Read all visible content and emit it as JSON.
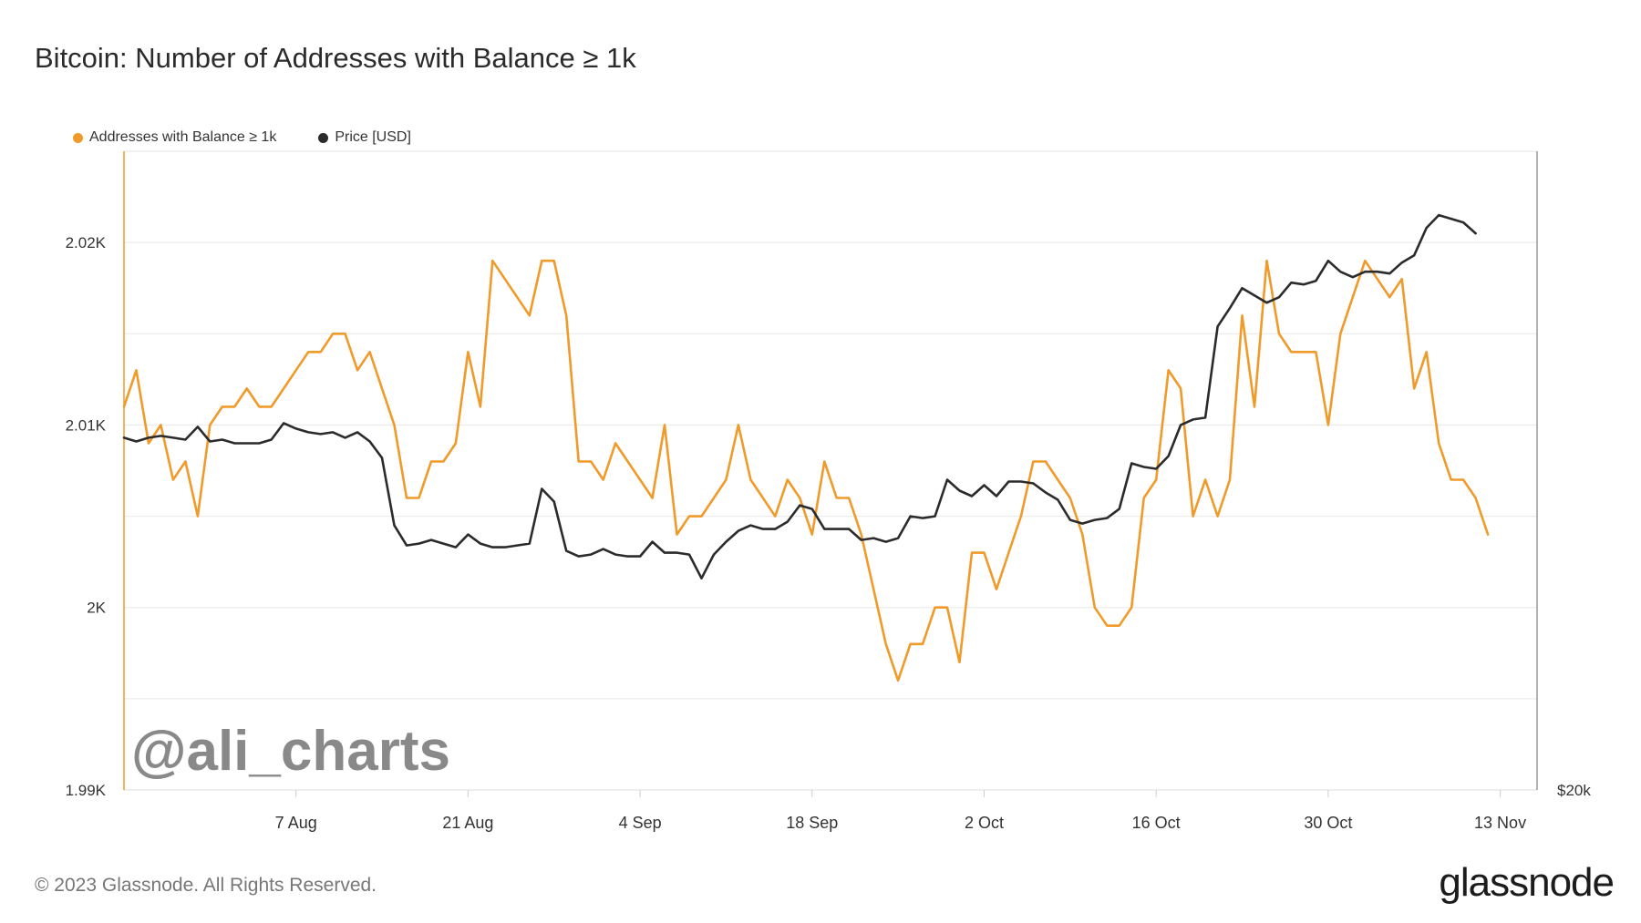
{
  "title": "Bitcoin: Number of Addresses with Balance ≥ 1k",
  "legend": [
    {
      "label": "Addresses with Balance ≥ 1k",
      "color": "#f09a2a"
    },
    {
      "label": "Price [USD]",
      "color": "#2b2b2b"
    }
  ],
  "watermark": "@ali_charts",
  "footer": {
    "copyright": "© 2023 Glassnode. All Rights Reserved.",
    "brand": "glassnode"
  },
  "chart_data": {
    "type": "line",
    "x_start": "2023-07-24",
    "x_ticks": [
      "7 Aug",
      "21 Aug",
      "4 Sep",
      "18 Sep",
      "2 Oct",
      "16 Oct",
      "30 Oct",
      "13 Nov"
    ],
    "x_tick_days": [
      14,
      28,
      42,
      56,
      70,
      84,
      98,
      112
    ],
    "y_left": {
      "ticks": [
        "1.99K",
        "2K",
        "2.01K",
        "2.02K"
      ],
      "tick_values": [
        1990,
        2000,
        2010,
        2020
      ],
      "range": [
        1990,
        2025
      ]
    },
    "y_right": {
      "ticks": [
        "$20k"
      ]
    },
    "grid": true,
    "series": [
      {
        "name": "Addresses with Balance ≥ 1k",
        "axis": "left",
        "color": "#f09a2a",
        "values": [
          2011,
          2013,
          2009,
          2010,
          2007,
          2008,
          2005,
          2010,
          2011,
          2011,
          2012,
          2011,
          2011,
          2012,
          2013,
          2014,
          2014,
          2015,
          2015,
          2013,
          2014,
          2012,
          2010,
          2006,
          2006,
          2008,
          2008,
          2009,
          2014,
          2011,
          2019,
          2018,
          2017,
          2016,
          2019,
          2019,
          2016,
          2008,
          2008,
          2007,
          2009,
          2008,
          2007,
          2006,
          2010,
          2004,
          2005,
          2005,
          2006,
          2007,
          2010,
          2007,
          2006,
          2005,
          2007,
          2006,
          2004,
          2008,
          2006,
          2006,
          2004,
          2001,
          1998,
          1996,
          1998,
          1998,
          2000,
          2000,
          1997,
          2003,
          2003,
          2001,
          2003,
          2005,
          2008,
          2008,
          2007,
          2006,
          2004,
          2000,
          1999,
          1999,
          2000,
          2006,
          2007,
          2013,
          2012,
          2005,
          2007,
          2005,
          2007,
          2016,
          2011,
          2019,
          2015,
          2014,
          2014,
          2014,
          2010,
          2015,
          2017,
          2019,
          2018,
          2017,
          2018,
          2012,
          2014,
          2009,
          2007,
          2007,
          2006,
          2004
        ]
      },
      {
        "name": "Price [USD]",
        "axis": "left",
        "color": "#2b2b2b",
        "values": [
          2009.3,
          2009.1,
          2009.3,
          2009.4,
          2009.3,
          2009.2,
          2009.9,
          2009.1,
          2009.2,
          2009,
          2009,
          2009,
          2009.2,
          2010.1,
          2009.8,
          2009.6,
          2009.5,
          2009.6,
          2009.3,
          2009.6,
          2009.1,
          2008.2,
          2004.5,
          2003.4,
          2003.5,
          2003.7,
          2003.5,
          2003.3,
          2004,
          2003.5,
          2003.3,
          2003.3,
          2003.4,
          2003.5,
          2006.5,
          2005.8,
          2003.1,
          2002.8,
          2002.9,
          2003.2,
          2002.9,
          2002.8,
          2002.8,
          2003.6,
          2003,
          2003,
          2002.9,
          2001.6,
          2002.9,
          2003.6,
          2004.2,
          2004.5,
          2004.3,
          2004.3,
          2004.7,
          2005.6,
          2005.4,
          2004.3,
          2004.3,
          2004.3,
          2003.7,
          2003.8,
          2003.6,
          2003.8,
          2005,
          2004.9,
          2005,
          2007,
          2006.4,
          2006.1,
          2006.7,
          2006.1,
          2006.9,
          2006.9,
          2006.8,
          2006.3,
          2005.9,
          2004.8,
          2004.6,
          2004.8,
          2004.9,
          2005.4,
          2007.9,
          2007.7,
          2007.6,
          2008.3,
          2010,
          2010.3,
          2010.4,
          2015.4,
          2016.4,
          2017.5,
          2017.1,
          2016.7,
          2017,
          2017.8,
          2017.7,
          2017.9,
          2019,
          2018.4,
          2018.1,
          2018.4,
          2018.4,
          2018.3,
          2018.9,
          2019.3,
          2020.8,
          2021.5,
          2021.3,
          2021.1,
          2020.5
        ]
      }
    ]
  }
}
